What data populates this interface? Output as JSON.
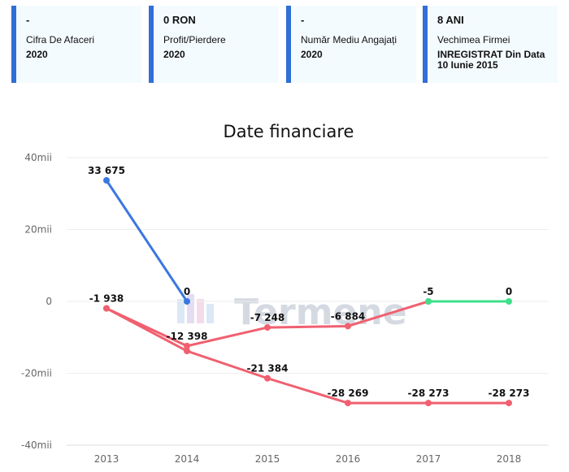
{
  "cards": [
    {
      "value": "-",
      "label": "Cifra De Afaceri",
      "sub": "2020"
    },
    {
      "value": "0 RON",
      "label": "Profit/Pierdere",
      "sub": "2020"
    },
    {
      "value": "-",
      "label": "Număr Mediu Angajați",
      "sub": "2020"
    },
    {
      "value": "8 ANI",
      "label": "Vechimea Firmei",
      "sub": "INREGISTRAT Din Data 10 Iunie 2015"
    }
  ],
  "colors": {
    "accent": "#2f6fd6",
    "card_bg": "#f4fbff"
  },
  "watermark": "Termene",
  "chart_data": {
    "type": "line",
    "title": "Date financiare",
    "x": [
      "2013",
      "2014",
      "2015",
      "2016",
      "2017",
      "2018"
    ],
    "ylim": [
      -40000,
      40000
    ],
    "yticks": [
      40000,
      20000,
      0,
      -20000,
      -40000
    ],
    "ytick_labels": [
      "40mii",
      "20mii",
      "0",
      "-20mii",
      "-40mii"
    ],
    "grid": true,
    "series": [
      {
        "color": "#3a78e0",
        "values": [
          33675,
          0,
          null,
          null,
          null,
          null
        ],
        "labels": [
          "33 675",
          "0",
          "",
          "",
          "",
          ""
        ]
      },
      {
        "color": "#f06070",
        "values": [
          -1938,
          -12398,
          -7248,
          -6884,
          -5,
          null
        ],
        "labels": [
          "-1 938",
          "-12 398",
          "-7 248",
          "-6 884",
          "-5",
          ""
        ]
      },
      {
        "color": "#3ee08a",
        "values": [
          null,
          null,
          null,
          null,
          -5,
          0
        ],
        "labels": [
          "",
          "",
          "",
          "",
          "",
          "0"
        ]
      },
      {
        "color": "#f06070",
        "values": [
          -1938,
          -13800,
          -21384,
          -28269,
          -28273,
          -28273
        ],
        "labels": [
          "",
          "",
          "-21 384",
          "-28 269",
          "-28 273",
          "-28 273"
        ]
      }
    ]
  }
}
